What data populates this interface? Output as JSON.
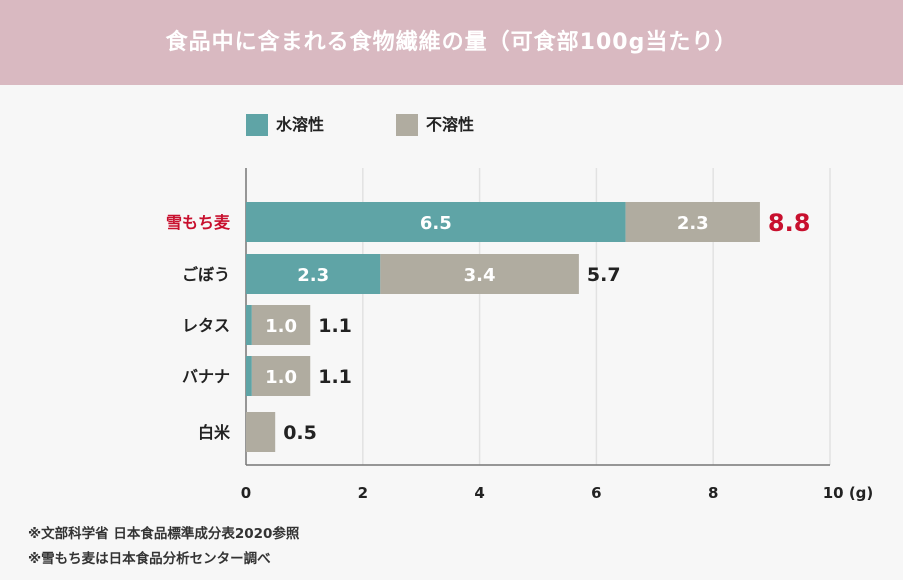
{
  "title": "食品中に含まれる食物繊維の量（可食部100g当たり）",
  "colors": {
    "soluble": "#5fa4a6",
    "insoluble": "#b0aca0",
    "highlight": "#c8102e",
    "label": "#222222"
  },
  "legend": [
    {
      "name": "水溶性",
      "color": "#5fa4a6"
    },
    {
      "name": "不溶性",
      "color": "#b0aca0"
    }
  ],
  "chart_data": {
    "type": "bar",
    "orientation": "horizontal",
    "stacked": true,
    "categories": [
      "雪もち麦",
      "ごぼう",
      "レタス",
      "バナナ",
      "白米"
    ],
    "series": [
      {
        "name": "水溶性",
        "values": [
          6.5,
          2.3,
          0.1,
          0.1,
          0.0
        ]
      },
      {
        "name": "不溶性",
        "values": [
          2.3,
          3.4,
          1.0,
          1.0,
          0.5
        ]
      }
    ],
    "segment_labels": [
      [
        "6.5",
        "2.3"
      ],
      [
        "2.3",
        "3.4"
      ],
      [
        "",
        "1.0"
      ],
      [
        "",
        "1.0"
      ],
      [
        "",
        ""
      ]
    ],
    "totals": [
      "8.8",
      "5.7",
      "1.1",
      "1.1",
      "0.5"
    ],
    "highlight_index": 0,
    "x_ticks": [
      "0",
      "2",
      "4",
      "6",
      "8",
      "10 (g)"
    ],
    "x_tick_values": [
      0,
      2,
      4,
      6,
      8,
      10
    ],
    "xlim": [
      0,
      10
    ],
    "grid": true,
    "legend_position": "top-left"
  },
  "notes": [
    "※文部科学省 日本食品標準成分表2020参照",
    "※雪もち麦は日本食品分析センター調べ"
  ]
}
